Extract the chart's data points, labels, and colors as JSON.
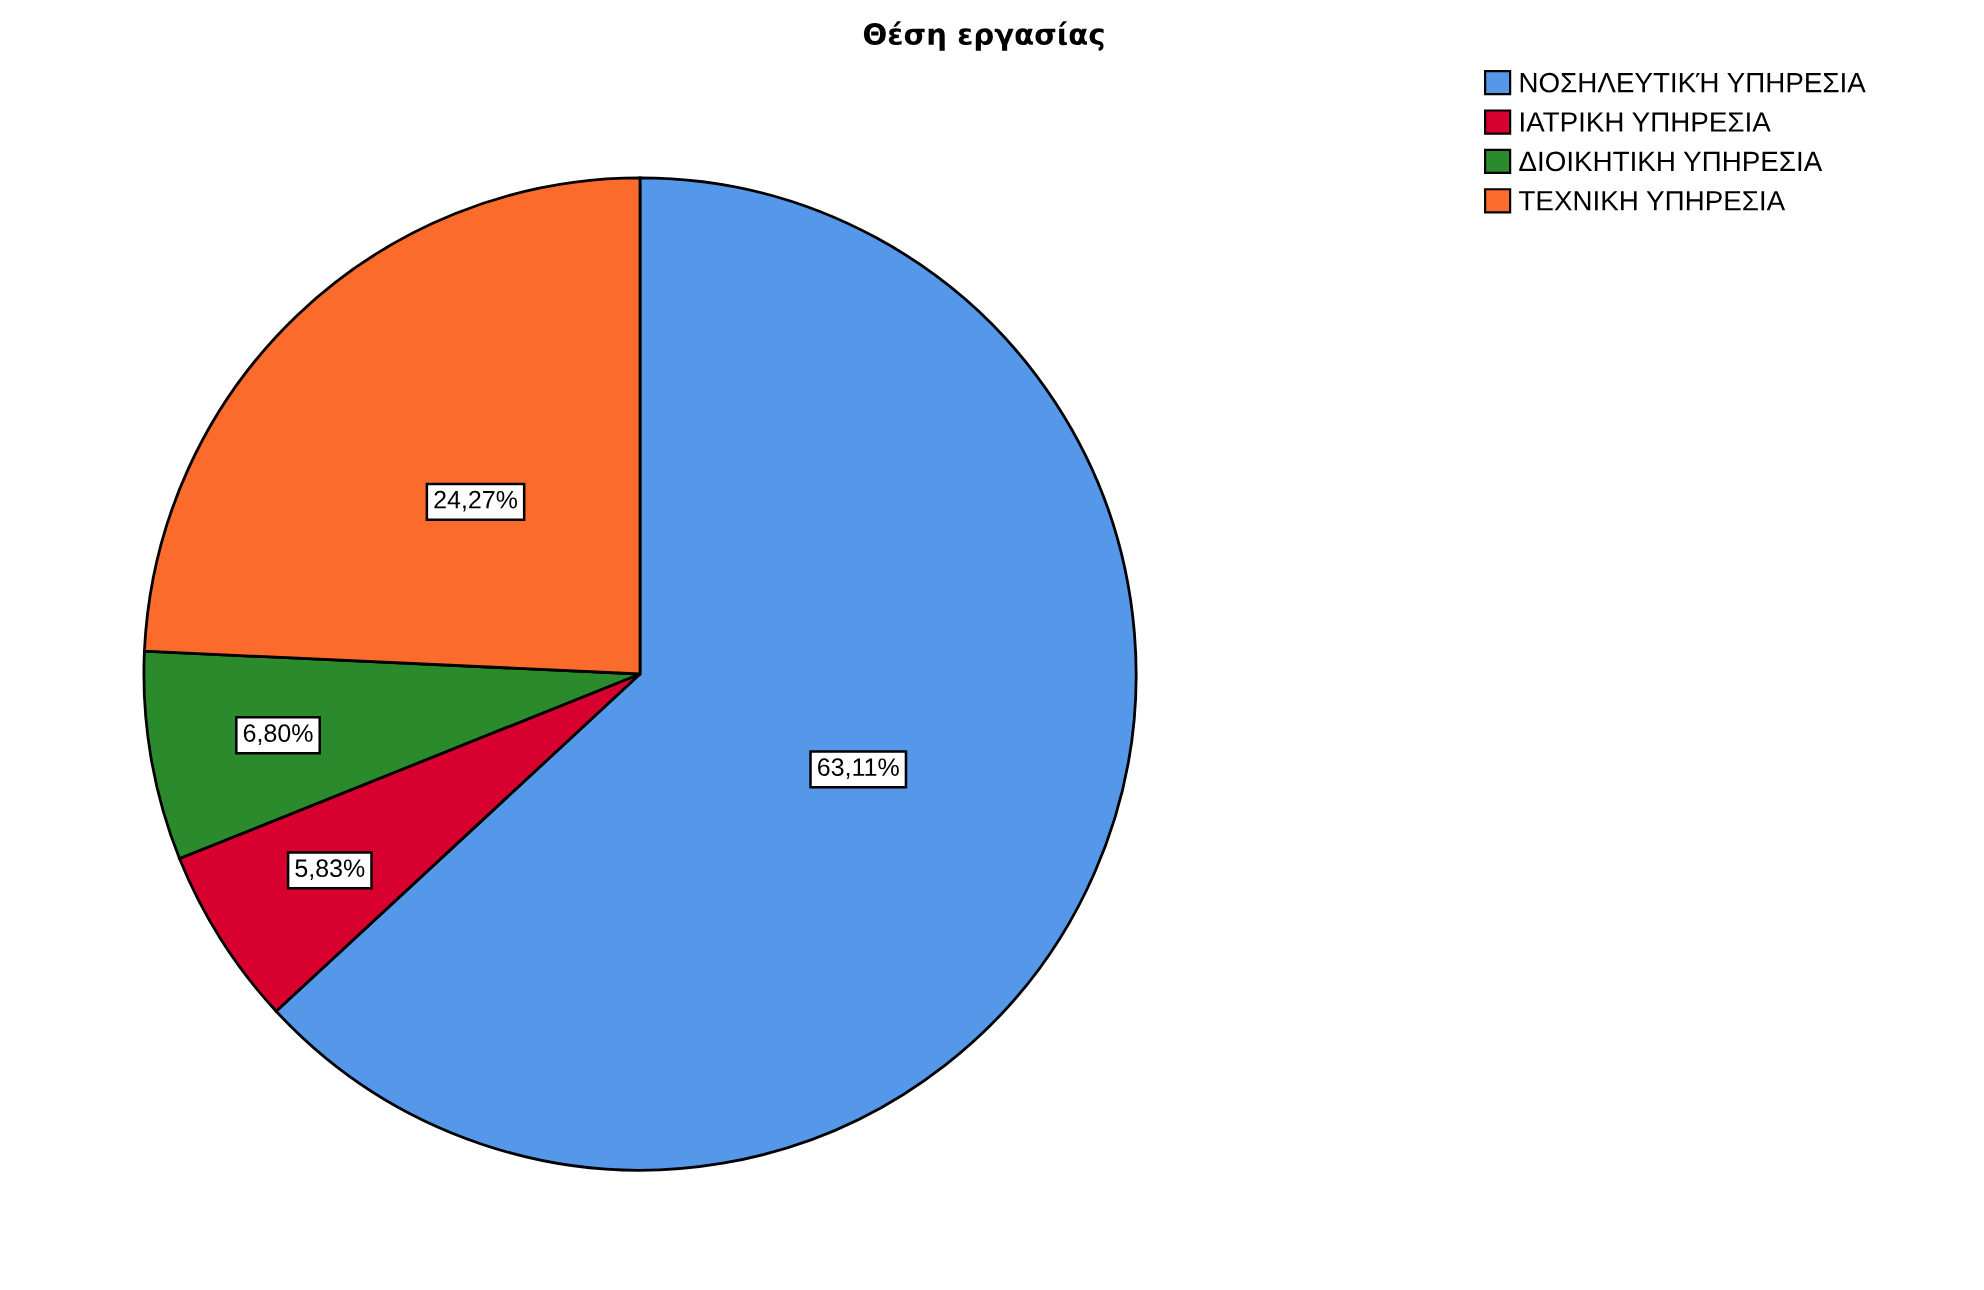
{
  "chart_data": {
    "type": "pie",
    "title": "Θέση εργασίας",
    "categories": [
      "ΝΟΣΗΛΕΥΤΙΚΉ ΥΠΗΡΕΣΙΑ",
      "ΙΑΤΡΙΚΗ ΥΠΗΡΕΣΙΑ",
      "ΔΙΟΙΚΗΤΙΚΗ ΥΠΗΡΕΣΙΑ",
      "ΤΕΧΝΙΚΗ ΥΠΗΡΕΣΙΑ"
    ],
    "values": [
      63.11,
      5.83,
      6.8,
      24.27
    ],
    "value_labels": [
      "63,11%",
      "5,83%",
      "6,80%",
      "24,27%"
    ],
    "colors": [
      "#5597e9",
      "#d7002f",
      "#2b8a2b",
      "#fb6b2c"
    ],
    "legend": "top right"
  }
}
